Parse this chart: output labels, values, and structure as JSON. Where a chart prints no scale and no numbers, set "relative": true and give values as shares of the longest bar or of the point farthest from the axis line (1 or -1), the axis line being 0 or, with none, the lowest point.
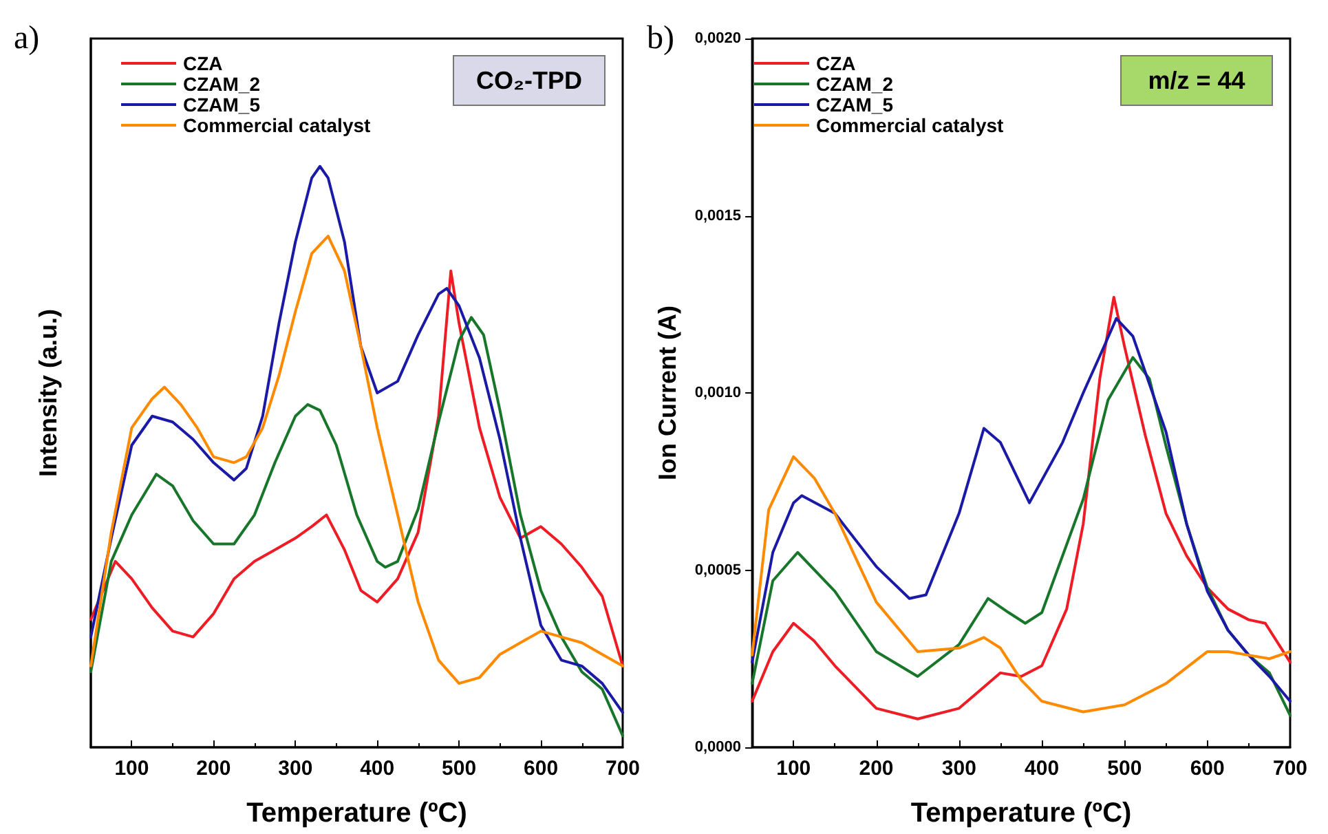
{
  "chart_data": [
    {
      "type": "line",
      "xlabel": "Temperature (ºC)",
      "ylabel": "Intensity (a.u.)",
      "relative": true,
      "tick_labels": "x",
      "xlim": [
        50,
        700
      ],
      "xticks": [
        100,
        200,
        300,
        400,
        500,
        600,
        700
      ],
      "legend": "top left",
      "grid": false,
      "marker": "none",
      "line_style": "solid",
      "annotations": [
        "a)",
        "CO₂-TPD"
      ],
      "series": [
        {
          "name": "CZA",
          "color": "#ee1c25",
          "x": [
            50,
            80,
            100,
            125,
            150,
            175,
            200,
            225,
            250,
            275,
            300,
            320,
            338,
            360,
            380,
            400,
            425,
            450,
            475,
            490,
            500,
            525,
            550,
            575,
            600,
            625,
            650,
            675,
            700
          ],
          "values": [
            0.22,
            0.32,
            0.29,
            0.24,
            0.2,
            0.19,
            0.23,
            0.29,
            0.32,
            0.34,
            0.36,
            0.38,
            0.4,
            0.34,
            0.27,
            0.25,
            0.29,
            0.37,
            0.57,
            0.82,
            0.73,
            0.55,
            0.43,
            0.36,
            0.38,
            0.35,
            0.31,
            0.26,
            0.14
          ]
        },
        {
          "name": "CZAM_2",
          "color": "#18762b",
          "x": [
            50,
            75,
            100,
            130,
            150,
            175,
            200,
            225,
            250,
            275,
            300,
            315,
            330,
            350,
            375,
            400,
            410,
            425,
            450,
            475,
            500,
            515,
            530,
            550,
            575,
            600,
            625,
            650,
            675,
            700
          ],
          "values": [
            0.13,
            0.32,
            0.4,
            0.47,
            0.45,
            0.39,
            0.35,
            0.35,
            0.4,
            0.49,
            0.57,
            0.59,
            0.58,
            0.52,
            0.4,
            0.32,
            0.31,
            0.32,
            0.41,
            0.56,
            0.7,
            0.74,
            0.71,
            0.58,
            0.4,
            0.27,
            0.19,
            0.13,
            0.1,
            0.02
          ]
        },
        {
          "name": "CZAM_5",
          "color": "#1a1aa6",
          "x": [
            50,
            75,
            100,
            125,
            150,
            175,
            200,
            225,
            240,
            260,
            280,
            300,
            320,
            330,
            340,
            360,
            380,
            400,
            425,
            450,
            475,
            485,
            500,
            525,
            550,
            575,
            600,
            625,
            650,
            675,
            700
          ],
          "values": [
            0.19,
            0.36,
            0.52,
            0.57,
            0.56,
            0.53,
            0.49,
            0.46,
            0.48,
            0.57,
            0.73,
            0.87,
            0.98,
            1,
            0.98,
            0.87,
            0.69,
            0.61,
            0.63,
            0.71,
            0.78,
            0.79,
            0.76,
            0.67,
            0.53,
            0.36,
            0.21,
            0.15,
            0.14,
            0.11,
            0.06
          ]
        },
        {
          "name": "Commercial catalyst",
          "color": "#ff8a00",
          "x": [
            50,
            75,
            100,
            125,
            140,
            160,
            180,
            200,
            225,
            240,
            260,
            280,
            300,
            320,
            340,
            360,
            380,
            400,
            425,
            450,
            475,
            500,
            525,
            550,
            575,
            600,
            625,
            650,
            675,
            700
          ],
          "values": [
            0.14,
            0.37,
            0.55,
            0.6,
            0.62,
            0.59,
            0.55,
            0.5,
            0.49,
            0.5,
            0.55,
            0.64,
            0.75,
            0.85,
            0.88,
            0.82,
            0.69,
            0.55,
            0.4,
            0.25,
            0.15,
            0.11,
            0.12,
            0.16,
            0.18,
            0.2,
            0.19,
            0.18,
            0.16,
            0.14
          ]
        }
      ]
    },
    {
      "type": "line",
      "xlabel": "Temperature (ºC)",
      "ylabel": "Ion Current (A)",
      "xlim": [
        50,
        700
      ],
      "xticks": [
        100,
        200,
        300,
        400,
        500,
        600,
        700
      ],
      "ylim": [
        0,
        0.002
      ],
      "yticks": [
        {
          "value": 0,
          "label": "0,0000"
        },
        {
          "value": 0.0005,
          "label": "0,0005"
        },
        {
          "value": 0.001,
          "label": "0,0010"
        },
        {
          "value": 0.0015,
          "label": "0,0015"
        },
        {
          "value": 0.002,
          "label": "0,0020"
        }
      ],
      "legend": "top left",
      "grid": false,
      "marker": "none",
      "line_style": "solid",
      "annotations": [
        "b)",
        "m/z = 44"
      ],
      "series": [
        {
          "name": "CZA",
          "color": "#ee1c25",
          "x": [
            50,
            75,
            100,
            125,
            150,
            200,
            250,
            300,
            350,
            375,
            400,
            430,
            450,
            470,
            487,
            500,
            525,
            550,
            575,
            600,
            625,
            650,
            670,
            700
          ],
          "values": [
            0.00013,
            0.00027,
            0.00035,
            0.0003,
            0.00023,
            0.00011,
            8e-05,
            0.00011,
            0.00021,
            0.0002,
            0.00023,
            0.00039,
            0.00063,
            0.00104,
            0.00127,
            0.00113,
            0.00088,
            0.00066,
            0.00054,
            0.00045,
            0.00039,
            0.00036,
            0.00035,
            0.00024
          ]
        },
        {
          "name": "CZAM_2",
          "color": "#18762b",
          "x": [
            50,
            75,
            105,
            150,
            200,
            250,
            300,
            335,
            360,
            380,
            400,
            450,
            480,
            510,
            530,
            550,
            575,
            600,
            625,
            650,
            675,
            700
          ],
          "values": [
            0.00018,
            0.00047,
            0.00055,
            0.00044,
            0.00027,
            0.0002,
            0.00029,
            0.00042,
            0.00038,
            0.00035,
            0.00038,
            0.0007,
            0.00098,
            0.0011,
            0.00104,
            0.00085,
            0.00063,
            0.00045,
            0.00033,
            0.00026,
            0.00021,
            9e-05
          ]
        },
        {
          "name": "CZAM_5",
          "color": "#1a1aa6",
          "x": [
            50,
            75,
            100,
            110,
            150,
            200,
            240,
            260,
            300,
            330,
            350,
            385,
            425,
            450,
            475,
            490,
            510,
            550,
            575,
            600,
            625,
            650,
            675,
            700
          ],
          "values": [
            0.00024,
            0.00055,
            0.00069,
            0.00071,
            0.00066,
            0.00051,
            0.00042,
            0.00043,
            0.00066,
            0.0009,
            0.00086,
            0.00069,
            0.00086,
            0.001,
            0.00113,
            0.00121,
            0.00116,
            0.00089,
            0.00063,
            0.00044,
            0.00033,
            0.00026,
            0.0002,
            0.00013
          ]
        },
        {
          "name": "Commercial catalyst",
          "color": "#ff8a00",
          "x": [
            50,
            70,
            100,
            125,
            150,
            200,
            250,
            300,
            330,
            350,
            375,
            400,
            450,
            500,
            550,
            600,
            625,
            650,
            675,
            700
          ],
          "values": [
            0.00026,
            0.00067,
            0.00082,
            0.00076,
            0.00066,
            0.00041,
            0.00027,
            0.00028,
            0.00031,
            0.00028,
            0.00019,
            0.00013,
            0.0001,
            0.00012,
            0.00018,
            0.00027,
            0.00027,
            0.00026,
            0.00025,
            0.00027
          ]
        }
      ]
    }
  ]
}
